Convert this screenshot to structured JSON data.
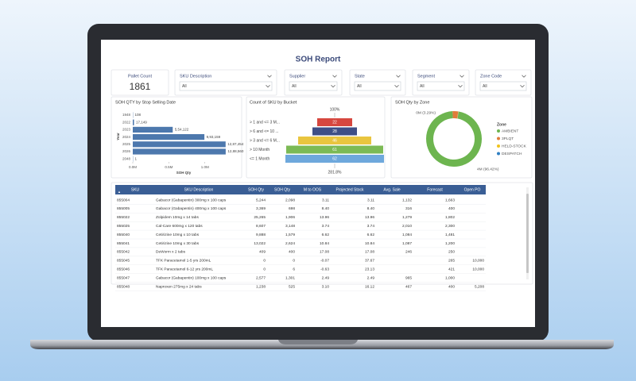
{
  "header": {
    "title": "SOH Report"
  },
  "kpi": {
    "label": "Pallet Count",
    "value": "1861"
  },
  "filters": [
    {
      "label": "SKU Description",
      "value": "All"
    },
    {
      "label": "Supplier",
      "value": "All"
    },
    {
      "label": "State",
      "value": "All"
    },
    {
      "label": "Segment",
      "value": "All"
    },
    {
      "label": "Zone Code",
      "value": "All"
    }
  ],
  "chart_data": [
    {
      "type": "bar",
      "orientation": "horizontal",
      "title": "SOH QTY by Stop Selling Date",
      "x_label": "SOH Qty",
      "y_label": "Year",
      "color": "#4d78ad",
      "categories": [
        "1948",
        "2022",
        "2023",
        "2024",
        "2025",
        "2026",
        "2048"
      ],
      "values": [
        108,
        17149,
        554122,
        993159,
        1287454,
        1288560,
        1
      ],
      "value_labels": [
        "108",
        "17,149",
        "5,54,122",
        "9,93,159",
        "12,87,454",
        "12,88,560",
        "1"
      ],
      "xlim": [
        0,
        1400000
      ],
      "xticks": [
        {
          "value": 0,
          "label": "0.0M"
        },
        {
          "value": 500000,
          "label": "0.5M"
        },
        {
          "value": 1000000,
          "label": "1.0M"
        }
      ]
    },
    {
      "type": "funnel",
      "title": "Count of SKU by Bucket",
      "categories": [
        "> 1 and <= 3 M...",
        "> 6 and <= 10 ...",
        "> 3 and <= 6 M...",
        "> 10 Month",
        "<= 1 Month"
      ],
      "values": [
        22,
        28,
        46,
        61,
        62
      ],
      "colors": [
        "#d6473f",
        "#3e4f86",
        "#e9c53f",
        "#7cba55",
        "#6ea8dc"
      ],
      "top_label": "100%",
      "bottom_label": "281.8%"
    },
    {
      "type": "donut",
      "title": "SOH Qty by Zone",
      "legend_title": "Zone",
      "legend": "right",
      "categories": [
        "AMBIENT",
        "3PLQT",
        "HELD-STOCK",
        "DESPATCH"
      ],
      "values": [
        96.42,
        3.29,
        0.2,
        0.09
      ],
      "value_labels": [
        "4M (96.42%)",
        "0M (3.29%)",
        null,
        null
      ],
      "colors": [
        "#6db54f",
        "#e07c3a",
        "#f0c31b",
        "#2f7fc2"
      ]
    }
  ],
  "table": {
    "columns": [
      "SKU",
      "SKU Description",
      "SOH Qty",
      "SOH Qty",
      "M to OOS",
      "Projected Stock",
      "Avg. Sale",
      "Forecast",
      "Open PO"
    ],
    "rows": [
      [
        "855004",
        "Gabacor (Gabapentin) 300mg x 100 caps",
        "5,244",
        "2,098",
        "3.11",
        "3.11",
        "1,132",
        "1,663",
        null
      ],
      [
        "855005",
        "Gabacor (Gabapentin) 400mg x 100 caps",
        "3,369",
        "698",
        "8.40",
        "8.40",
        "316",
        "400",
        null
      ],
      [
        "855022",
        "Zolpidem 10mg x 14 tabs",
        "25,265",
        "1,906",
        "13.96",
        "13.96",
        "1,279",
        "1,802",
        null
      ],
      [
        "855025",
        "Cal-Care 600mg x 120 tabs",
        "8,607",
        "3,148",
        "3.74",
        "3.74",
        "2,010",
        "2,300",
        null
      ],
      [
        "855040",
        "Cetirizine 10mg x 10 tabs",
        "9,888",
        "1,579",
        "6.62",
        "6.62",
        "1,084",
        "1,481",
        null
      ],
      [
        "855041",
        "Cetirizine 10mg x 30 tabs",
        "13,022",
        "2,624",
        "10.84",
        "10.84",
        "1,087",
        "1,200",
        null
      ],
      [
        "855042",
        "DeWorm x 2 tabs",
        "409",
        "400",
        "17.08",
        "17.08",
        "246",
        "250",
        null
      ],
      [
        "855045",
        "TFK Paracetamol 1-5 yrs 200mL",
        "0",
        "0",
        "-0.07",
        "37.67",
        null,
        "265",
        "10,000"
      ],
      [
        "855046",
        "TFK Paracetamol 6-12 yrs 200mL",
        "0",
        "6",
        "-0.63",
        "23.13",
        null,
        "421",
        "10,000"
      ],
      [
        "855047",
        "Gabacor (Gabapentin) 100mg x 100 caps",
        "2,577",
        "1,301",
        "2.49",
        "2.49",
        "965",
        "1,000",
        null
      ],
      [
        "855048",
        "Naproxen 275mg x 24 tabs",
        "1,238",
        "525",
        "3.10",
        "16.12",
        "467",
        "400",
        "5,208"
      ]
    ]
  }
}
